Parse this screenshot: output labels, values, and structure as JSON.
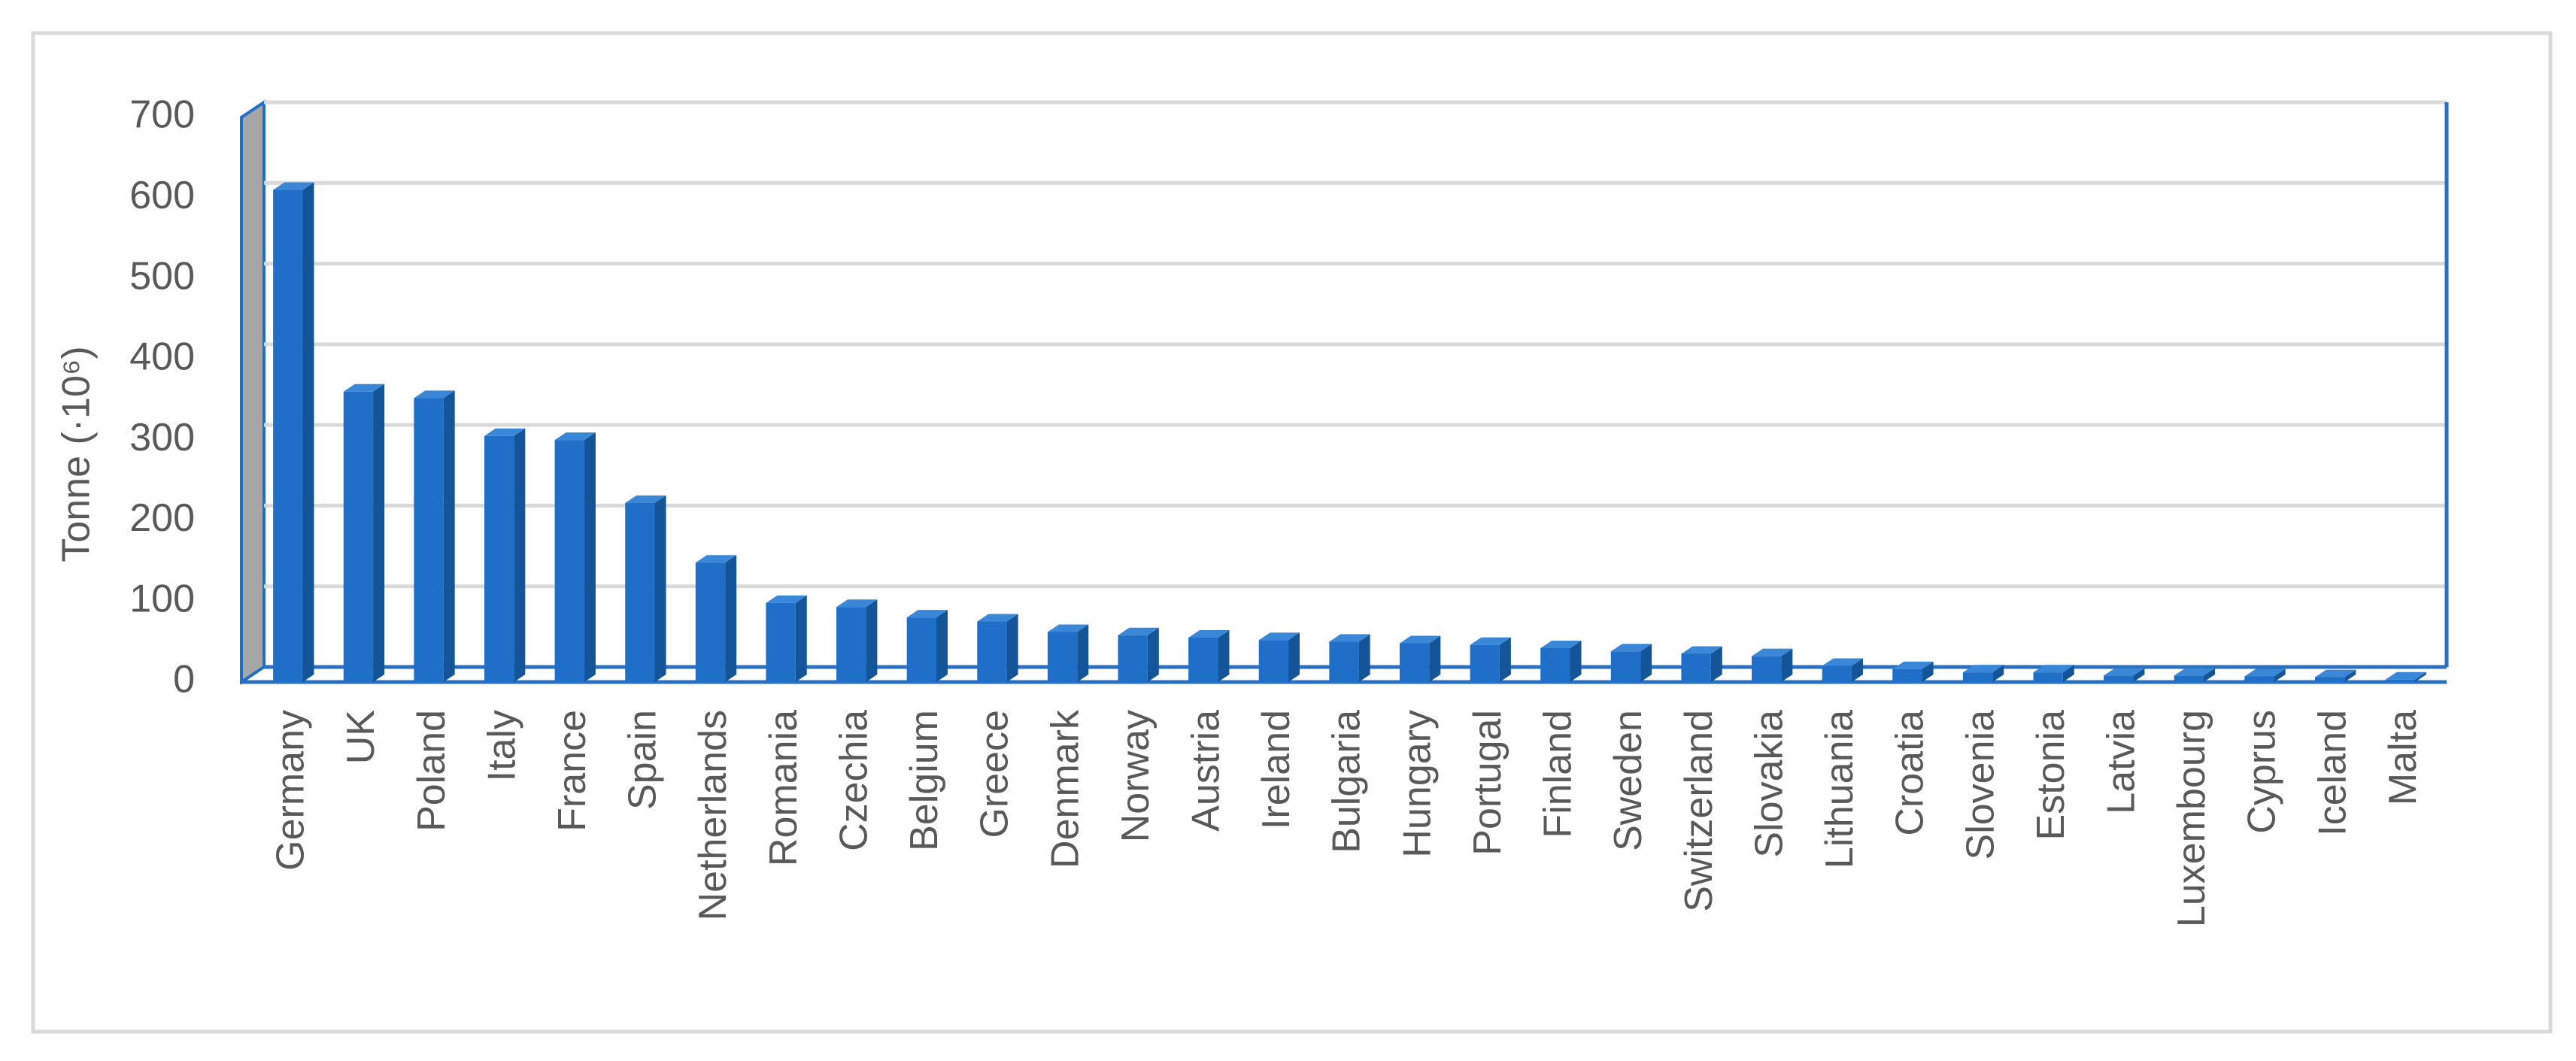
{
  "chart_data": {
    "type": "bar3d",
    "ylabel": "Tonne (·10⁶)",
    "categories": [
      "Germany",
      "UK",
      "Poland",
      "Italy",
      "France",
      "Spain",
      "Netherlands",
      "Romania",
      "Czechia",
      "Belgium",
      "Greece",
      "Denmark",
      "Norway",
      "Austria",
      "Ireland",
      "Bulgaria",
      "Hungary",
      "Portugal",
      "Finland",
      "Sweden",
      "Switzerland",
      "Slovakia",
      "Lithuania",
      "Croatia",
      "Slovenia",
      "Estonia",
      "Latvia",
      "Luxembourg",
      "Cyprus",
      "Iceland",
      "Malta"
    ],
    "values": [
      610,
      360,
      352,
      305,
      300,
      222,
      148,
      98,
      93,
      80,
      75,
      62,
      58,
      55,
      52,
      50,
      48,
      46,
      42,
      38,
      35,
      32,
      20,
      16,
      12,
      12,
      8,
      8,
      7,
      6,
      3
    ],
    "color": "#1f6fc8",
    "ylim": [
      0,
      700
    ],
    "yticks": [
      0,
      100,
      200,
      300,
      400,
      500,
      600,
      700
    ],
    "grid": true
  }
}
